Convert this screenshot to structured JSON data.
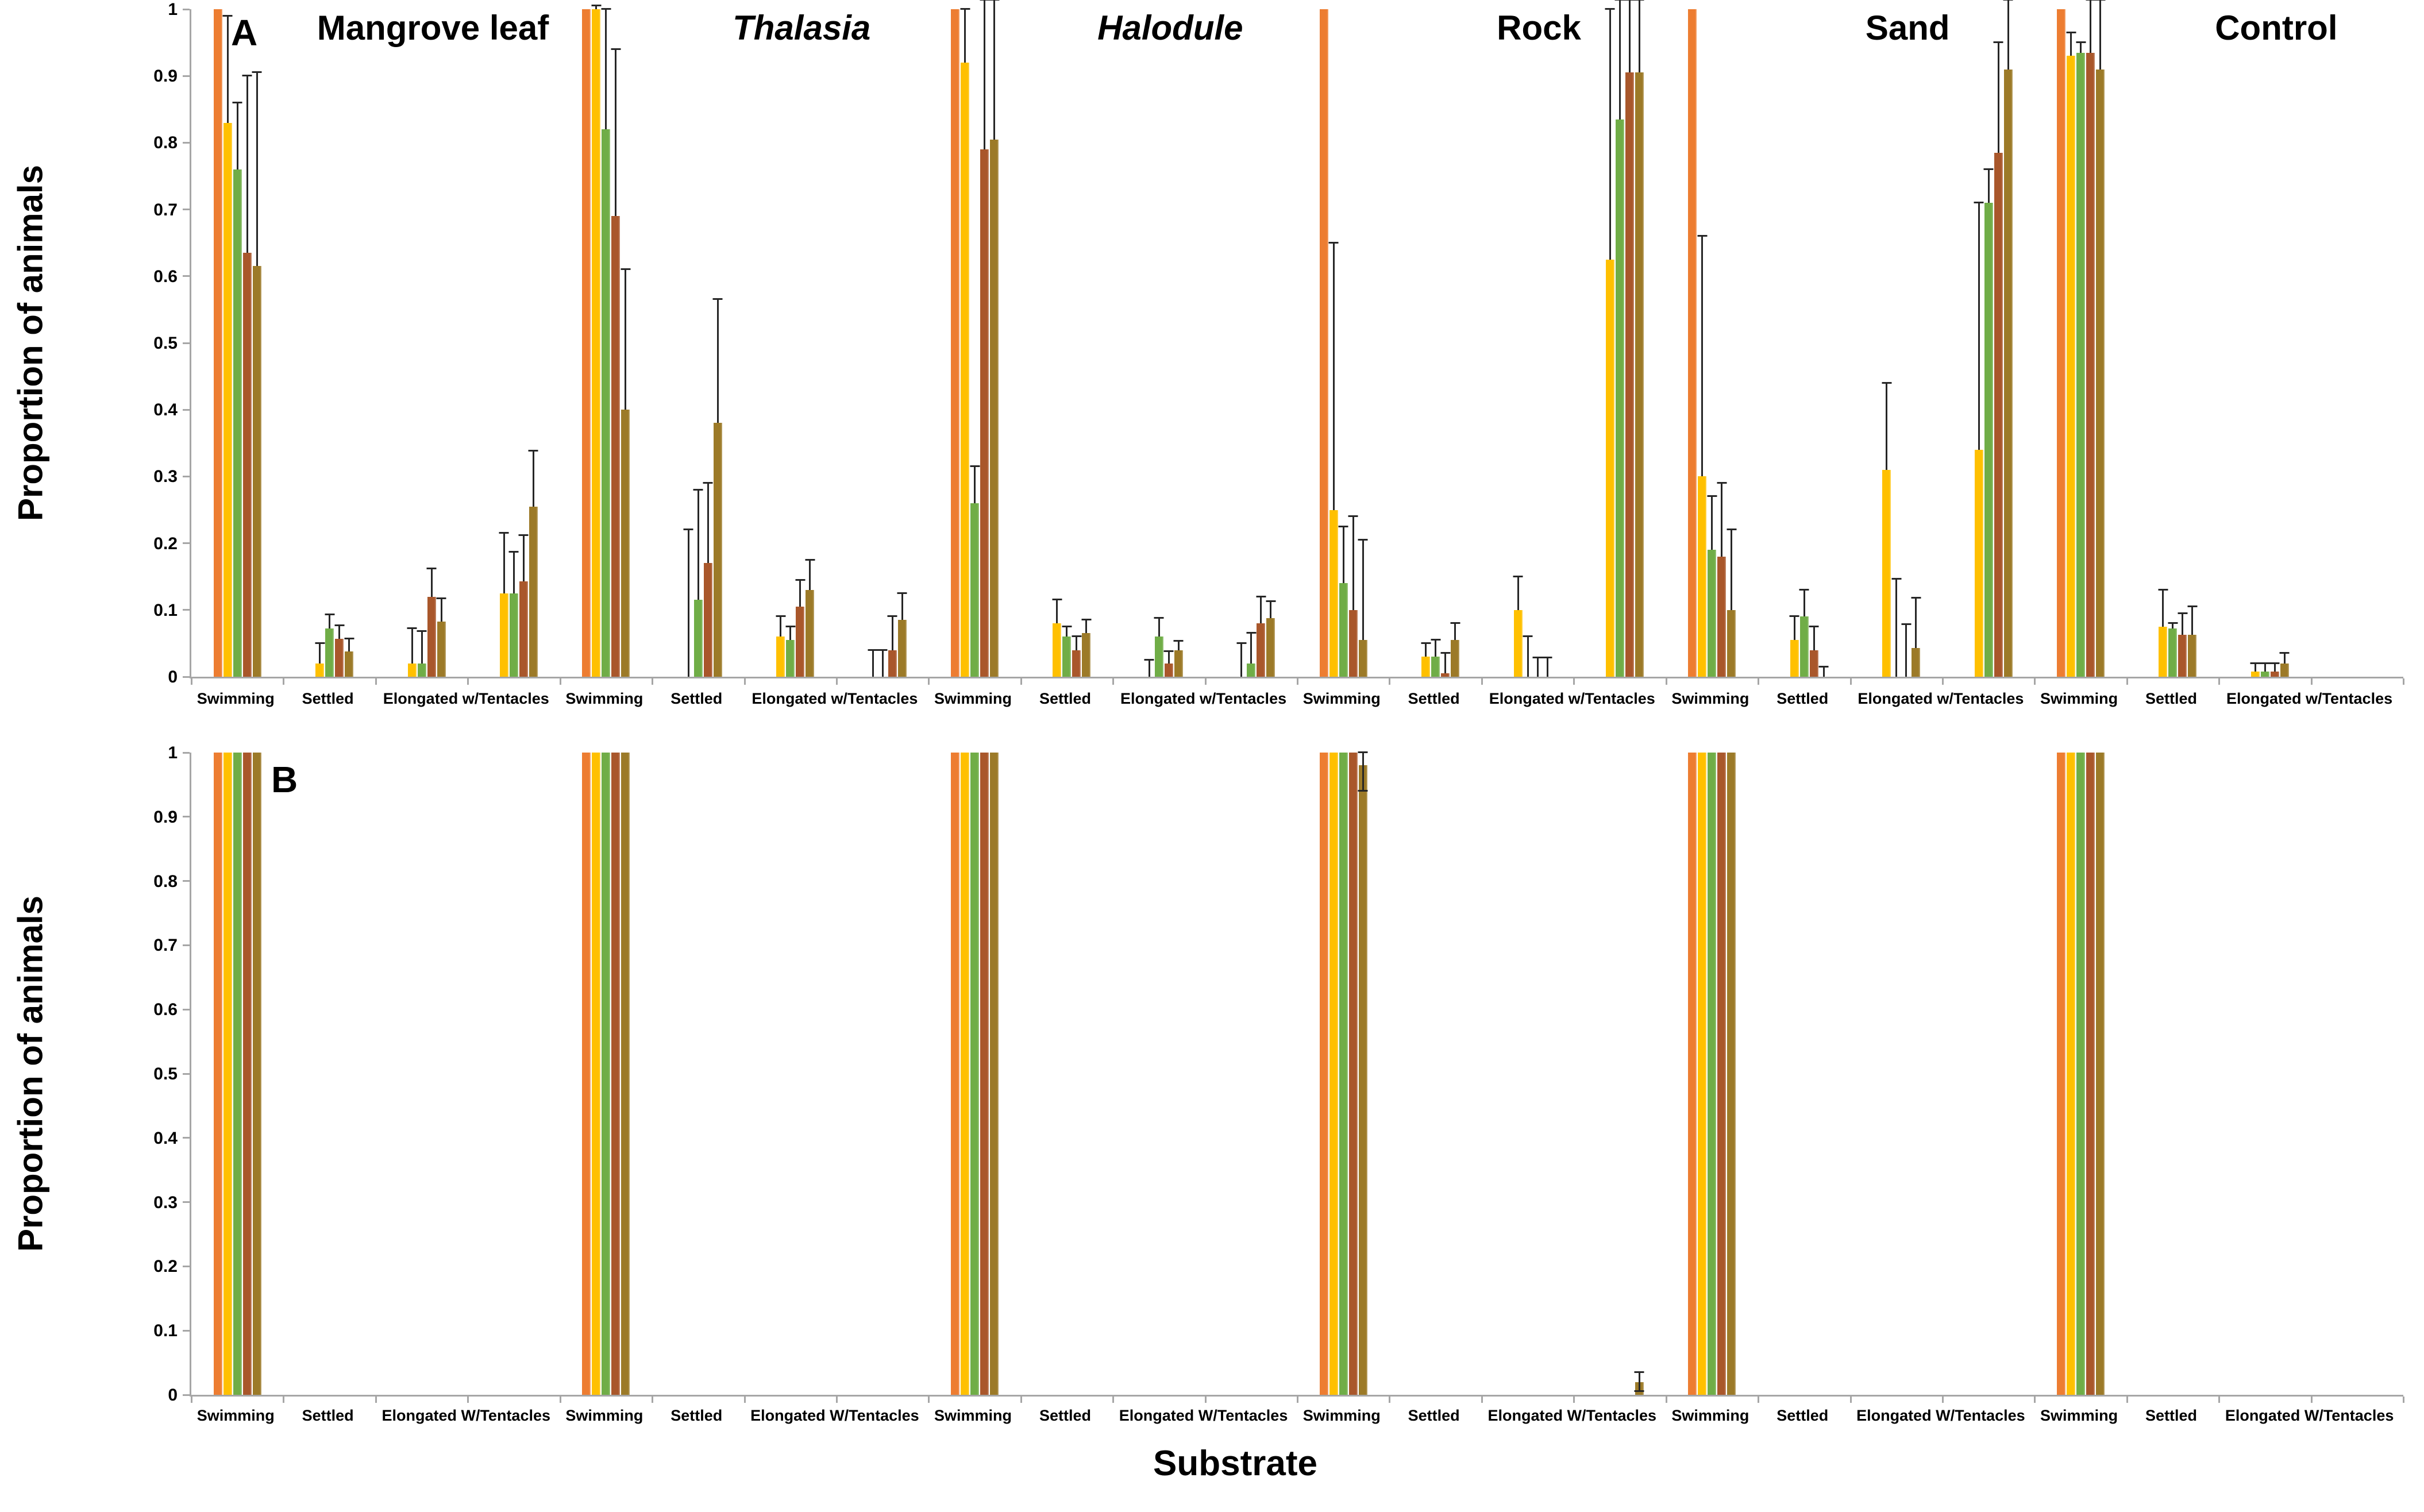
{
  "figure": {
    "xlabel": "Substrate",
    "ylabel": "Proportion of animals",
    "panel_a_letter": "A",
    "panel_b_letter": "B"
  },
  "chart_data": {
    "type": "bar",
    "title": "",
    "xlabel": "Substrate",
    "ylabel": "Proportion of animals",
    "ylim": [
      0,
      1
    ],
    "grid": false,
    "legend": "none",
    "colors": {
      "series": [
        "#ED7D31",
        "#FFC000",
        "#70AD47",
        "#A9572B",
        "#9C7A28"
      ],
      "error_bar": "#262626",
      "axis": "#A6A6A6",
      "text": "#000000"
    },
    "series_names": [
      "series-1-orange",
      "series-2-yellow",
      "series-3-green",
      "series-4-brown",
      "series-5-dark-gold"
    ],
    "ytick_labels": [
      "1",
      "0.9",
      "0.8",
      "0.7",
      "0.6",
      "0.5",
      "0.4",
      "0.3",
      "0.2",
      "0.1",
      "0"
    ],
    "panels": [
      {
        "letter": "A",
        "ylabel": "Proportion of animals",
        "tick_labels": [
          "Swimming",
          "Settled",
          "Elongated w/Tentacles"
        ],
        "show_titles": true,
        "substrates": [
          {
            "name": "Mangrove leaf",
            "italic": false,
            "clusters": [
              {
                "v": [
                  1.0,
                  0.83,
                  0.76,
                  0.635,
                  0.615
                ],
                "e": [
                  null,
                  0.99,
                  0.86,
                  0.9,
                  0.905
                ]
              },
              {
                "v": [
                  0,
                  0.02,
                  0.072,
                  0.057,
                  0.038
                ],
                "e": [
                  null,
                  0.05,
                  0.093,
                  0.077,
                  0.057
                ]
              },
              {
                "v": [
                  0,
                  0.02,
                  0.02,
                  0.12,
                  0.083
                ],
                "e": [
                  null,
                  0.072,
                  0.068,
                  0.162,
                  0.117
                ]
              },
              {
                "v": [
                  0,
                  0.125,
                  0.125,
                  0.143,
                  0.255
                ],
                "e": [
                  null,
                  0.215,
                  0.187,
                  0.212,
                  0.338
                ]
              }
            ]
          },
          {
            "name": "Thalasia",
            "italic": true,
            "clusters": [
              {
                "v": [
                  1.0,
                  1.0,
                  0.82,
                  0.69,
                  0.4
                ],
                "e": [
                  null,
                  1.005,
                  1.0,
                  0.94,
                  0.61
                ]
              },
              {
                "v": [
                  0,
                  0,
                  0.115,
                  0.17,
                  0.38
                ],
                "e": [
                  null,
                  0.22,
                  0.28,
                  0.29,
                  0.565
                ]
              },
              {
                "v": [
                  0,
                  0.06,
                  0.055,
                  0.105,
                  0.13
                ],
                "e": [
                  null,
                  0.09,
                  0.075,
                  0.145,
                  0.175
                ]
              },
              {
                "v": [
                  0,
                  0,
                  0,
                  0.04,
                  0.085
                ],
                "e": [
                  null,
                  0.04,
                  0.04,
                  0.09,
                  0.125
                ]
              }
            ]
          },
          {
            "name": "Halodule",
            "italic": true,
            "clusters": [
              {
                "v": [
                  1.0,
                  0.92,
                  0.26,
                  0.79,
                  0.805
                ],
                "e": [
                  null,
                  1.0,
                  0.315,
                  1.014,
                  1.014
                ]
              },
              {
                "v": [
                  0,
                  0.08,
                  0.06,
                  0.04,
                  0.065
                ],
                "e": [
                  null,
                  0.115,
                  0.075,
                  0.06,
                  0.085
                ]
              },
              {
                "v": [
                  0,
                  0,
                  0.06,
                  0.02,
                  0.04
                ],
                "e": [
                  null,
                  0.025,
                  0.088,
                  0.038,
                  0.053
                ]
              },
              {
                "v": [
                  0,
                  0,
                  0.02,
                  0.08,
                  0.088
                ],
                "e": [
                  null,
                  0.05,
                  0.065,
                  0.12,
                  0.113
                ]
              }
            ]
          },
          {
            "name": "Rock",
            "italic": false,
            "clusters": [
              {
                "v": [
                  1.0,
                  0.25,
                  0.14,
                  0.1,
                  0.055
                ],
                "e": [
                  null,
                  0.65,
                  0.225,
                  0.24,
                  0.205
                ]
              },
              {
                "v": [
                  0,
                  0.03,
                  0.03,
                  0.005,
                  0.055
                ],
                "e": [
                  null,
                  0.05,
                  0.055,
                  0.035,
                  0.08
                ]
              },
              {
                "v": [
                  0,
                  0.1,
                  0,
                  0,
                  0
                ],
                "e": [
                  null,
                  0.15,
                  0.06,
                  0.028,
                  0.028
                ]
              },
              {
                "v": [
                  0,
                  0.625,
                  0.835,
                  0.905,
                  0.905
                ],
                "e": [
                  null,
                  1.0,
                  1.014,
                  1.014,
                  1.014
                ]
              }
            ]
          },
          {
            "name": "Sand",
            "italic": false,
            "clusters": [
              {
                "v": [
                  1.0,
                  0.3,
                  0.19,
                  0.18,
                  0.1
                ],
                "e": [
                  null,
                  0.66,
                  0.27,
                  0.29,
                  0.22
                ]
              },
              {
                "v": [
                  0,
                  0.055,
                  0.09,
                  0.04,
                  0
                ],
                "e": [
                  null,
                  0.09,
                  0.13,
                  0.075,
                  0.015
                ]
              },
              {
                "v": [
                  0,
                  0.31,
                  0,
                  0,
                  0.043
                ],
                "e": [
                  null,
                  0.44,
                  0.146,
                  0.078,
                  0.118
                ]
              },
              {
                "v": [
                  0,
                  0.34,
                  0.71,
                  0.785,
                  0.91
                ],
                "e": [
                  null,
                  0.71,
                  0.76,
                  0.95,
                  1.014
                ]
              }
            ]
          },
          {
            "name": "Control",
            "italic": false,
            "clusters": [
              {
                "v": [
                  1.0,
                  0.93,
                  0.935,
                  0.935,
                  0.91
                ],
                "e": [
                  null,
                  0.965,
                  0.95,
                  1.014,
                  1.014
                ]
              },
              {
                "v": [
                  0,
                  0.075,
                  0.072,
                  0.063,
                  0.063
                ],
                "e": [
                  null,
                  0.13,
                  0.08,
                  0.095,
                  0.105
                ]
              },
              {
                "v": [
                  0,
                  0.008,
                  0.008,
                  0.008,
                  0.02
                ],
                "e": [
                  null,
                  0.02,
                  0.02,
                  0.02,
                  0.035
                ]
              },
              {
                "v": [
                  0,
                  0,
                  0,
                  0,
                  0
                ],
                "e": [
                  null,
                  null,
                  null,
                  null,
                  null
                ]
              }
            ]
          }
        ]
      },
      {
        "letter": "B",
        "ylabel": "Proportion of animals",
        "tick_labels": [
          "Swimming",
          "Settled",
          "Elongated W/Tentacles"
        ],
        "show_titles": false,
        "substrates": [
          {
            "name": "",
            "italic": false,
            "clusters": [
              {
                "v": [
                  1,
                  1,
                  1,
                  1,
                  1
                ],
                "e": [
                  null,
                  null,
                  null,
                  null,
                  null
                ]
              },
              {
                "v": [
                  0,
                  0,
                  0,
                  0,
                  0
                ],
                "e": [
                  null,
                  null,
                  null,
                  null,
                  null
                ]
              },
              {
                "v": [
                  0,
                  0,
                  0,
                  0,
                  0
                ],
                "e": [
                  null,
                  null,
                  null,
                  null,
                  null
                ]
              },
              {
                "v": [
                  0,
                  0,
                  0,
                  0,
                  0
                ],
                "e": [
                  null,
                  null,
                  null,
                  null,
                  null
                ]
              }
            ]
          },
          {
            "name": "",
            "italic": false,
            "clusters": [
              {
                "v": [
                  1,
                  1,
                  1,
                  1,
                  1
                ],
                "e": [
                  null,
                  null,
                  null,
                  null,
                  null
                ]
              },
              {
                "v": [
                  0,
                  0,
                  0,
                  0,
                  0
                ],
                "e": [
                  null,
                  null,
                  null,
                  null,
                  null
                ]
              },
              {
                "v": [
                  0,
                  0,
                  0,
                  0,
                  0
                ],
                "e": [
                  null,
                  null,
                  null,
                  null,
                  null
                ]
              },
              {
                "v": [
                  0,
                  0,
                  0,
                  0,
                  0
                ],
                "e": [
                  null,
                  null,
                  null,
                  null,
                  null
                ]
              }
            ]
          },
          {
            "name": "",
            "italic": false,
            "clusters": [
              {
                "v": [
                  1,
                  1,
                  1,
                  1,
                  1
                ],
                "e": [
                  null,
                  null,
                  null,
                  null,
                  null
                ]
              },
              {
                "v": [
                  0,
                  0,
                  0,
                  0,
                  0
                ],
                "e": [
                  null,
                  null,
                  null,
                  null,
                  null
                ]
              },
              {
                "v": [
                  0,
                  0,
                  0,
                  0,
                  0
                ],
                "e": [
                  null,
                  null,
                  null,
                  null,
                  null
                ]
              },
              {
                "v": [
                  0,
                  0,
                  0,
                  0,
                  0
                ],
                "e": [
                  null,
                  null,
                  null,
                  null,
                  null
                ]
              }
            ]
          },
          {
            "name": "",
            "italic": false,
            "clusters": [
              {
                "v": [
                  1,
                  1,
                  1,
                  1,
                  0.98
                ],
                "e": [
                  null,
                  null,
                  null,
                  null,
                  1.0
                ],
                "el": [
                  null,
                  null,
                  null,
                  null,
                  0.94
                ]
              },
              {
                "v": [
                  0,
                  0,
                  0,
                  0,
                  0
                ],
                "e": [
                  null,
                  null,
                  null,
                  null,
                  null
                ]
              },
              {
                "v": [
                  0,
                  0,
                  0,
                  0,
                  0
                ],
                "e": [
                  null,
                  null,
                  null,
                  null,
                  null
                ]
              },
              {
                "v": [
                  0,
                  0,
                  0,
                  0,
                  0.02
                ],
                "e": [
                  null,
                  null,
                  null,
                  null,
                  0.035
                ],
                "el": [
                  null,
                  null,
                  null,
                  null,
                  0.005
                ]
              }
            ]
          },
          {
            "name": "",
            "italic": false,
            "clusters": [
              {
                "v": [
                  1,
                  1,
                  1,
                  1,
                  1
                ],
                "e": [
                  null,
                  null,
                  null,
                  null,
                  null
                ]
              },
              {
                "v": [
                  0,
                  0,
                  0,
                  0,
                  0
                ],
                "e": [
                  null,
                  null,
                  null,
                  null,
                  null
                ]
              },
              {
                "v": [
                  0,
                  0,
                  0,
                  0,
                  0
                ],
                "e": [
                  null,
                  null,
                  null,
                  null,
                  null
                ]
              },
              {
                "v": [
                  0,
                  0,
                  0,
                  0,
                  0
                ],
                "e": [
                  null,
                  null,
                  null,
                  null,
                  null
                ]
              }
            ]
          },
          {
            "name": "",
            "italic": false,
            "clusters": [
              {
                "v": [
                  1,
                  1,
                  1,
                  1,
                  1
                ],
                "e": [
                  null,
                  null,
                  null,
                  null,
                  null
                ]
              },
              {
                "v": [
                  0,
                  0,
                  0,
                  0,
                  0
                ],
                "e": [
                  null,
                  null,
                  null,
                  null,
                  null
                ]
              },
              {
                "v": [
                  0,
                  0,
                  0,
                  0,
                  0
                ],
                "e": [
                  null,
                  null,
                  null,
                  null,
                  null
                ]
              },
              {
                "v": [
                  0,
                  0,
                  0,
                  0,
                  0
                ],
                "e": [
                  null,
                  null,
                  null,
                  null,
                  null
                ]
              }
            ]
          }
        ]
      }
    ]
  }
}
